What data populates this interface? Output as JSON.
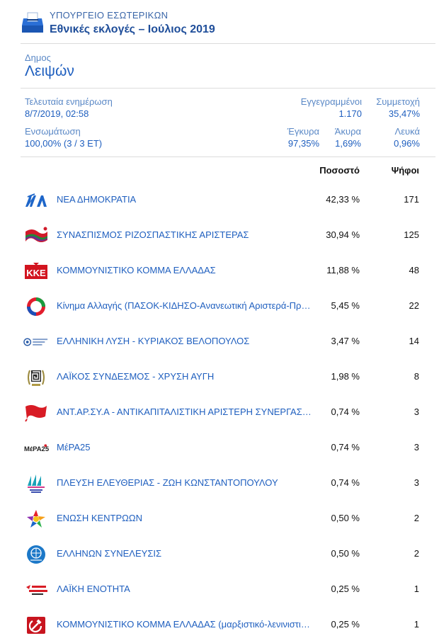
{
  "header": {
    "ministry": "ΥΠΟΥΡΓΕΙΟ ΕΣΩΤΕΡΙΚΩΝ",
    "election": "Εθνικές εκλογές – Ιούλιος 2019",
    "icon": "ballot-box-icon"
  },
  "municipality": {
    "label": "Δημος",
    "name": "Λειψών"
  },
  "meta": {
    "last_update_label": "Τελευταία ενημέρωση",
    "last_update_value": "8/7/2019, 02:58",
    "registered_label": "Εγγεγραμμένοι",
    "registered_value": "1.170",
    "turnout_label": "Συμμετοχή",
    "turnout_value": "35,47%",
    "integration_label": "Ενσωμάτωση",
    "integration_value": "100,00% (3 / 3 ΕΤ)",
    "valid_label": "Έγκυρα",
    "valid_value": "97,35%",
    "invalid_label": "Άκυρα",
    "invalid_value": "1,69%",
    "blank_label": "Λευκά",
    "blank_value": "0,96%"
  },
  "table": {
    "col_percent": "Ποσοστό",
    "col_votes": "Ψήφοι",
    "rows": [
      {
        "name": "ΝΕΑ ΔΗΜΟΚΡΑΤΙΑ",
        "percent": "42,33 %",
        "votes": "171",
        "logo_text": "ΝΔ",
        "logo": "nd-logo-icon"
      },
      {
        "name": "ΣΥΝΑΣΠΙΣΜΟΣ ΡΙΖΟΣΠΑΣΤΙΚΗΣ ΑΡΙΣΤΕΡΑΣ",
        "percent": "30,94 %",
        "votes": "125",
        "logo": "syriza-flag-icon"
      },
      {
        "name": "ΚΟΜΜΟΥΝΙΣΤΙΚΟ ΚΟΜΜΑ ΕΛΛΑΔΑΣ",
        "percent": "11,88 %",
        "votes": "48",
        "logo_text": "ΚΚΕ",
        "logo": "kke-logo-icon"
      },
      {
        "name": "Κίνημα Αλλαγής (ΠΑΣΟΚ-ΚΙΔΗΣΟ-Ανανεωτική Αριστερά-Πράσινοι)",
        "percent": "5,45 %",
        "votes": "22",
        "logo": "kinal-logo-icon"
      },
      {
        "name": "ΕΛΛΗΝΙΚΗ ΛΥΣΗ - ΚΥΡΙΑΚΟΣ ΒΕΛΟΠΟΥΛΟΣ",
        "percent": "3,47 %",
        "votes": "14",
        "logo": "elliniki-lysi-logo-icon"
      },
      {
        "name": "ΛΑΪΚΟΣ ΣΥΝΔΕΣΜΟΣ - ΧΡΥΣΗ ΑΥΓΗ",
        "percent": "1,98 %",
        "votes": "8",
        "logo": "meander-wreath-icon"
      },
      {
        "name": "ΑΝΤ.ΑΡ.ΣΥ.Α - ΑΝΤΙΚΑΠΙΤΑΛΙΣΤΙΚΗ ΑΡΙΣΤΕΡΗ ΣΥΝΕΡΓΑΣΙΑ ΓΙΑ ΤΗΝ ΑΝΑΤΡΟΠΗ",
        "percent": "0,74 %",
        "votes": "3",
        "logo": "red-flag-icon"
      },
      {
        "name": "ΜέΡΑ25",
        "percent": "0,74 %",
        "votes": "3",
        "logo_text": "ΜέΡΑ25",
        "logo": "mera25-logo-icon"
      },
      {
        "name": "ΠΛΕΥΣΗ ΕΛΕΥΘΕΡΙΑΣ - ΖΩΗ ΚΩΝΣΤΑΝΤΟΠΟΥΛΟΥ",
        "percent": "0,74 %",
        "votes": "3",
        "logo": "sailboat-logo-icon"
      },
      {
        "name": "ΕΝΩΣΗ ΚΕΝΤΡΩΩΝ",
        "percent": "0,50 %",
        "votes": "2",
        "logo": "colored-star-icon"
      },
      {
        "name": "ΕΛΛΗΝΩΝ ΣΥΝΕΛΕΥΣΙΣ",
        "percent": "0,50 %",
        "votes": "2",
        "logo": "globe-circle-icon"
      },
      {
        "name": "ΛΑΪΚΗ ΕΝΟΤΗΤΑ",
        "percent": "0,25 %",
        "votes": "1",
        "logo": "laiki-enotita-logo-icon"
      },
      {
        "name": "ΚΟΜΜΟΥΝΙΣΤΙΚΟ ΚΟΜΜΑ ΕΛΛΑΔΑΣ (μαρξιστικό-λενινιστικό)",
        "percent": "0,25 %",
        "votes": "1",
        "logo": "hammer-sickle-icon"
      }
    ]
  },
  "colors": {
    "accent": "#1f5fbf",
    "label": "#5a88c6",
    "rule": "#dcdcdc"
  }
}
